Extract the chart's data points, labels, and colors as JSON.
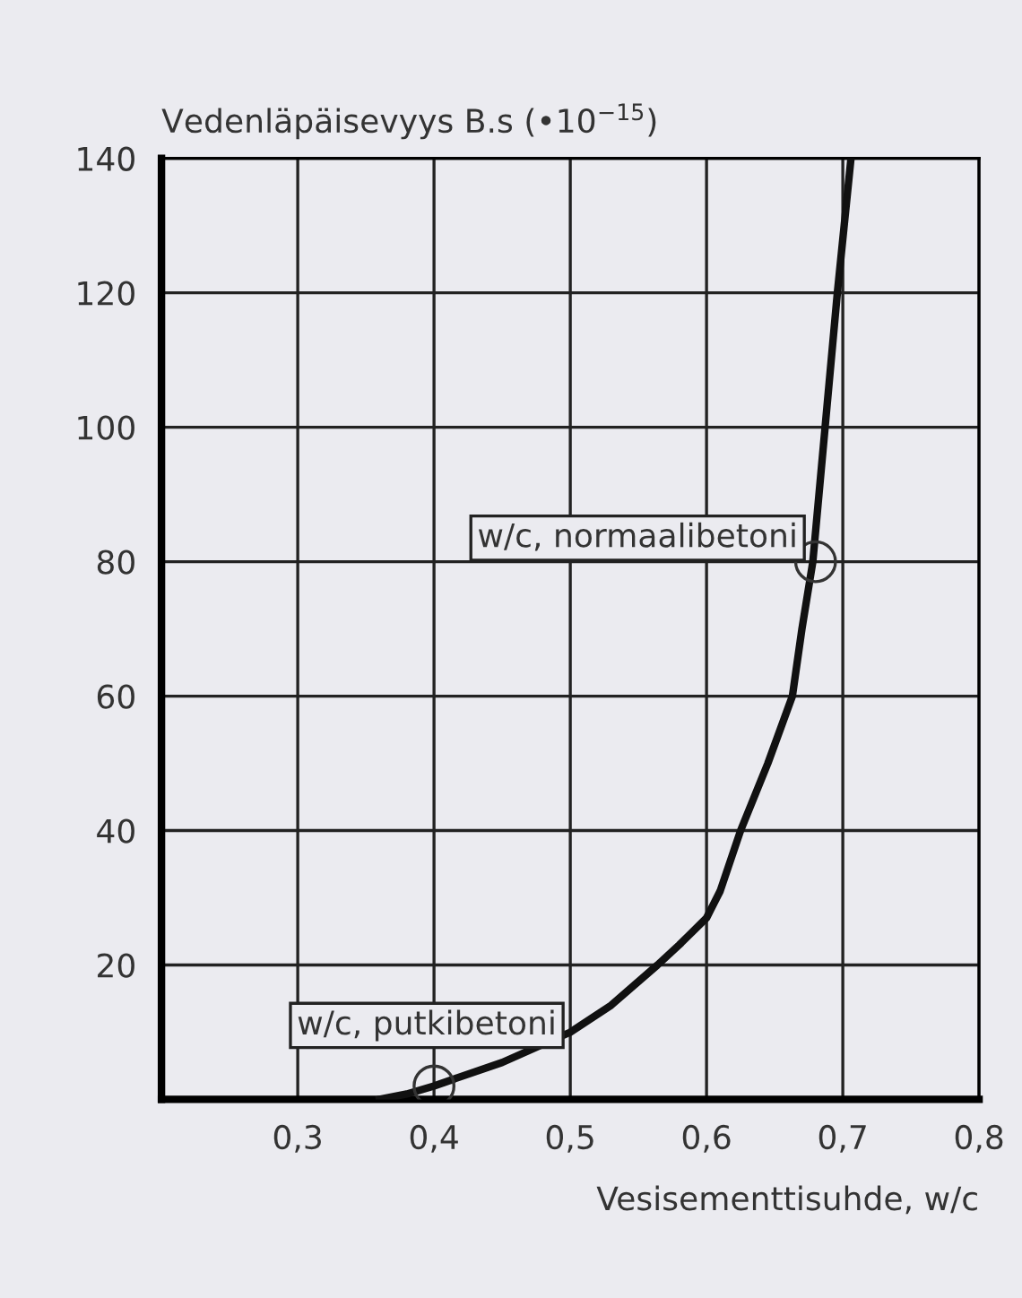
{
  "chart_data": {
    "type": "line",
    "title": "Vedenläpäisevyys B.s (•10$^{−15}$)",
    "xlabel": "Vesisementtisuhde, w/c",
    "x": [
      0.36,
      0.38,
      0.4,
      0.45,
      0.5,
      0.53,
      0.564,
      0.58,
      0.6,
      0.61,
      0.625,
      0.635,
      0.645,
      0.663,
      0.67,
      0.678,
      0.687,
      0.696,
      0.706
    ],
    "series": [
      {
        "color": "#111111",
        "values": [
          0,
          0.8,
          2,
          5.5,
          10,
          14,
          20,
          23,
          27,
          31,
          40,
          45,
          50,
          60,
          70,
          80,
          100,
          120,
          140
        ]
      }
    ],
    "xlim": [
      0.2,
      0.8
    ],
    "ylim": [
      0,
      140
    ],
    "xticks": [
      {
        "value": 0.3,
        "label": "0,3"
      },
      {
        "value": 0.4,
        "label": "0,4"
      },
      {
        "value": 0.5,
        "label": "0,5"
      },
      {
        "value": 0.6,
        "label": "0,6"
      },
      {
        "value": 0.7,
        "label": "0,7"
      },
      {
        "value": 0.8,
        "label": "0,8"
      }
    ],
    "yticks": [
      20,
      40,
      60,
      80,
      100,
      120,
      140
    ],
    "grid": true,
    "marker": "none",
    "line_style": "solid",
    "annotations": [
      {
        "text": "w/c, normaalibetoni",
        "x": 0.68,
        "y": 80
      },
      {
        "text": "w/c, putkibetoni",
        "x": 0.4,
        "y": 2
      }
    ]
  }
}
